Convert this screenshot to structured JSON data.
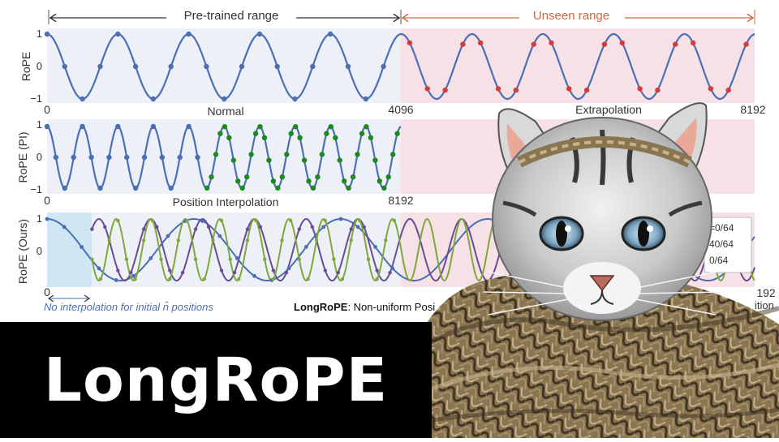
{
  "header": {
    "pretrained_label": "Pre-trained range",
    "unseen_label": "Unseen range"
  },
  "colors": {
    "blue": "#4a6fb5",
    "red_points": "#d23c3c",
    "green": "#1a8a1a",
    "purple": "#6a4c93",
    "olive": "#7ea83e",
    "unseen_bg": "#f6e1e6",
    "pre_bg": "#eef0f8",
    "light_blue_bg": "#cfe6f5",
    "arrow_orange": "#d1673c",
    "note_blue": "#4a6fb5"
  },
  "chart_data": [
    {
      "type": "line",
      "title": "Normal",
      "ylabel": "RoPE",
      "ylim": [
        -1,
        1
      ],
      "yticks": [
        "1",
        "0",
        "−1"
      ],
      "x_start_label": "0",
      "x_mid_label": "4096",
      "x_end_label": "8192",
      "right_title": "Extrapolation",
      "series": [
        {
          "period_tokens": 820,
          "phase": 0
        }
      ]
    },
    {
      "type": "line",
      "title": "Position Interpolation",
      "ylabel": "RoPE (PI)",
      "ylim": [
        -1,
        1
      ],
      "yticks": [
        "1",
        "0",
        "−1"
      ],
      "x_start_label": "0",
      "x_end_label": "8192",
      "series": [
        {
          "period_tokens": 820,
          "phase": 0
        }
      ]
    },
    {
      "type": "line",
      "title": "LongRoPE: Non-uniform Posi",
      "title_bold": "LongRoPE",
      "title_rest": ": Non-uniform Posi",
      "ylabel": "RoPE (Ours)",
      "ylim": [
        -1,
        1
      ],
      "yticks": [
        "1",
        "0"
      ],
      "x_start_label": "0",
      "x_end_label": "192",
      "note": "No interpolation for initial n̂ positions",
      "right_fragment": "ition",
      "legend": [
        "=0/64",
        "40/64",
        "0/64"
      ],
      "series": [
        {
          "period_tokens": 1700
        },
        {
          "period_tokens": 600
        },
        {
          "period_tokens": 400
        }
      ]
    }
  ],
  "overlay": {
    "title": "LongRoPE",
    "cat_image": "cat-wrapped-in-rope"
  }
}
